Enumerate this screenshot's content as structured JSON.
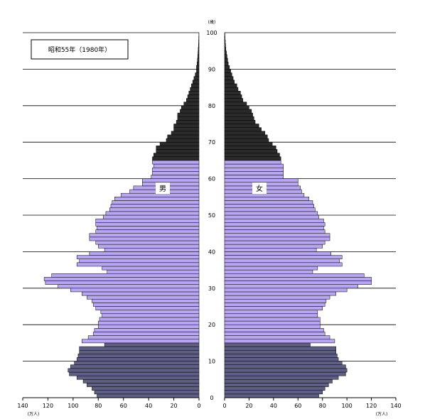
{
  "chart_data": {
    "type": "bar",
    "orientation": "horizontal",
    "title": "昭和55年（1980年）",
    "age_unit_label": "(歳)",
    "value_unit_label": "(万人)",
    "male_label": "男",
    "female_label": "女",
    "age_axis": {
      "min": 0,
      "max": 100,
      "ticks": [
        "0",
        "10",
        "20",
        "30",
        "40",
        "50",
        "60",
        "70",
        "80",
        "90",
        "100"
      ]
    },
    "value_axis": {
      "min": 0,
      "max": 140,
      "male_ticks": [
        "140",
        "120",
        "100",
        "80",
        "60",
        "40",
        "20",
        "0"
      ],
      "female_ticks": [
        "0",
        "20",
        "40",
        "60",
        "80",
        "100",
        "120",
        "140"
      ]
    },
    "grid": true,
    "age_groups": {
      "young": "0-14",
      "working": "15-64",
      "old": "65+"
    },
    "colors": {
      "young": "#5f5f86",
      "working": "#b9a6f2",
      "old": "#2b2b2b",
      "bar_edge": "#000000"
    },
    "ages": [
      0,
      1,
      2,
      3,
      4,
      5,
      6,
      7,
      8,
      9,
      10,
      11,
      12,
      13,
      14,
      15,
      16,
      17,
      18,
      19,
      20,
      21,
      22,
      23,
      24,
      25,
      26,
      27,
      28,
      29,
      30,
      31,
      32,
      33,
      34,
      35,
      36,
      37,
      38,
      39,
      40,
      41,
      42,
      43,
      44,
      45,
      46,
      47,
      48,
      49,
      50,
      51,
      52,
      53,
      54,
      55,
      56,
      57,
      58,
      59,
      60,
      61,
      62,
      63,
      64,
      65,
      66,
      67,
      68,
      69,
      70,
      71,
      72,
      73,
      74,
      75,
      76,
      77,
      78,
      79,
      80,
      81,
      82,
      83,
      84,
      85,
      86,
      87,
      88,
      89,
      90,
      91,
      92,
      93,
      94,
      95,
      96,
      97,
      98,
      99
    ],
    "series": [
      {
        "name": "男",
        "values": [
          81,
          83,
          85,
          89,
          92,
          97,
          103,
          104,
          102,
          99,
          97,
          96,
          95,
          95,
          75,
          93,
          88,
          84,
          83,
          80,
          80,
          79,
          77,
          78,
          82,
          84,
          85,
          89,
          93,
          102,
          112,
          122,
          123,
          117,
          73,
          77,
          97,
          95,
          97,
          87,
          75,
          80,
          82,
          87,
          87,
          82,
          81,
          82,
          82,
          76,
          74,
          71,
          70,
          69,
          67,
          62,
          55,
          52,
          45,
          45,
          38,
          37,
          37,
          36,
          37,
          37,
          36,
          34,
          34,
          31,
          26,
          25,
          22,
          20,
          20,
          18,
          17,
          17,
          15,
          14,
          12,
          10,
          9,
          8,
          7,
          6,
          5,
          4,
          3,
          2,
          2,
          1.5,
          1.2,
          1,
          0.8,
          0.6,
          0.4,
          0.3,
          0.2,
          0.1
        ]
      },
      {
        "name": "女",
        "values": [
          77,
          80,
          82,
          85,
          88,
          93,
          99,
          100,
          99,
          96,
          93,
          92,
          91,
          91,
          70,
          90,
          86,
          82,
          81,
          78,
          78,
          78,
          76,
          76,
          80,
          82,
          83,
          86,
          91,
          100,
          109,
          120,
          120,
          114,
          72,
          76,
          96,
          94,
          96,
          87,
          75,
          80,
          82,
          86,
          86,
          82,
          81,
          82,
          81,
          77,
          76,
          74,
          73,
          72,
          69,
          65,
          63,
          62,
          60,
          60,
          48,
          48,
          48,
          48,
          46,
          46,
          45,
          43,
          42,
          39,
          36,
          35,
          33,
          30,
          28,
          25,
          24,
          23,
          22,
          20,
          18,
          15,
          14,
          13,
          11,
          10,
          8,
          7,
          6,
          5,
          4,
          3,
          2.5,
          2,
          1.5,
          1,
          0.8,
          0.6,
          0.4,
          0.3
        ]
      }
    ]
  }
}
